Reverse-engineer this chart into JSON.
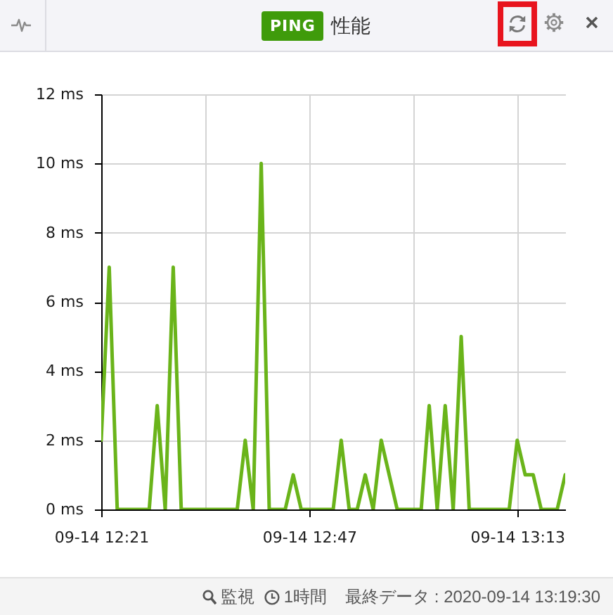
{
  "chart_data": {
    "type": "line",
    "title": "PING 性能",
    "x": [
      "2020-09-14T12:21",
      "2020-09-14T12:22",
      "2020-09-14T12:23",
      "2020-09-14T12:24",
      "2020-09-14T12:25",
      "2020-09-14T12:26",
      "2020-09-14T12:27",
      "2020-09-14T12:28",
      "2020-09-14T12:29",
      "2020-09-14T12:30",
      "2020-09-14T12:31",
      "2020-09-14T12:32",
      "2020-09-14T12:33",
      "2020-09-14T12:34",
      "2020-09-14T12:35",
      "2020-09-14T12:36",
      "2020-09-14T12:37",
      "2020-09-14T12:38",
      "2020-09-14T12:39",
      "2020-09-14T12:40",
      "2020-09-14T12:41",
      "2020-09-14T12:42",
      "2020-09-14T12:43",
      "2020-09-14T12:44",
      "2020-09-14T12:45",
      "2020-09-14T12:46",
      "2020-09-14T12:47",
      "2020-09-14T12:48",
      "2020-09-14T12:49",
      "2020-09-14T12:50",
      "2020-09-14T12:51",
      "2020-09-14T12:52",
      "2020-09-14T12:53",
      "2020-09-14T12:54",
      "2020-09-14T12:55",
      "2020-09-14T12:56",
      "2020-09-14T12:57",
      "2020-09-14T12:58",
      "2020-09-14T12:59",
      "2020-09-14T13:00",
      "2020-09-14T13:01",
      "2020-09-14T13:02",
      "2020-09-14T13:03",
      "2020-09-14T13:04",
      "2020-09-14T13:05",
      "2020-09-14T13:06",
      "2020-09-14T13:07",
      "2020-09-14T13:08",
      "2020-09-14T13:09",
      "2020-09-14T13:10",
      "2020-09-14T13:11",
      "2020-09-14T13:12",
      "2020-09-14T13:13",
      "2020-09-14T13:14",
      "2020-09-14T13:15",
      "2020-09-14T13:16",
      "2020-09-14T13:17",
      "2020-09-14T13:18",
      "2020-09-14T13:19"
    ],
    "series": [
      {
        "color": "#6ab41a",
        "values": [
          2,
          7,
          0,
          0,
          0,
          0,
          0,
          3,
          0,
          7,
          0,
          0,
          0,
          0,
          0,
          0,
          0,
          0,
          2,
          0,
          10,
          0,
          0,
          0,
          1,
          0,
          0,
          0,
          0,
          0,
          2,
          0,
          0,
          1,
          0,
          2,
          1,
          0,
          0,
          0,
          0,
          3,
          0,
          3,
          0,
          5,
          0,
          0,
          0,
          0,
          0,
          0,
          2,
          1,
          1,
          0,
          0,
          0,
          1
        ]
      }
    ],
    "xlim": [
      "2020-09-14T12:21",
      "2020-09-14T13:19"
    ],
    "xticks": [
      {
        "value": "2020-09-14T12:21",
        "label": "09-14 12:21"
      },
      {
        "value": "2020-09-14T12:34",
        "label": null
      },
      {
        "value": "2020-09-14T12:47",
        "label": "09-14 12:47"
      },
      {
        "value": "2020-09-14T13:00",
        "label": null
      },
      {
        "value": "2020-09-14T13:13",
        "label": "09-14 13:13"
      }
    ],
    "ylim": [
      0,
      12
    ],
    "yticks": [
      {
        "value": 0,
        "label": "0 ms"
      },
      {
        "value": 2,
        "label": "2 ms"
      },
      {
        "value": 4,
        "label": "4 ms"
      },
      {
        "value": 6,
        "label": "6 ms"
      },
      {
        "value": 8,
        "label": "8 ms"
      },
      {
        "value": 10,
        "label": "10 ms"
      },
      {
        "value": 12,
        "label": "12 ms"
      }
    ],
    "grid": true,
    "annotations": [
      "監視",
      "1時間",
      "最終データ : 2020-09-14 13:19:30"
    ]
  }
}
